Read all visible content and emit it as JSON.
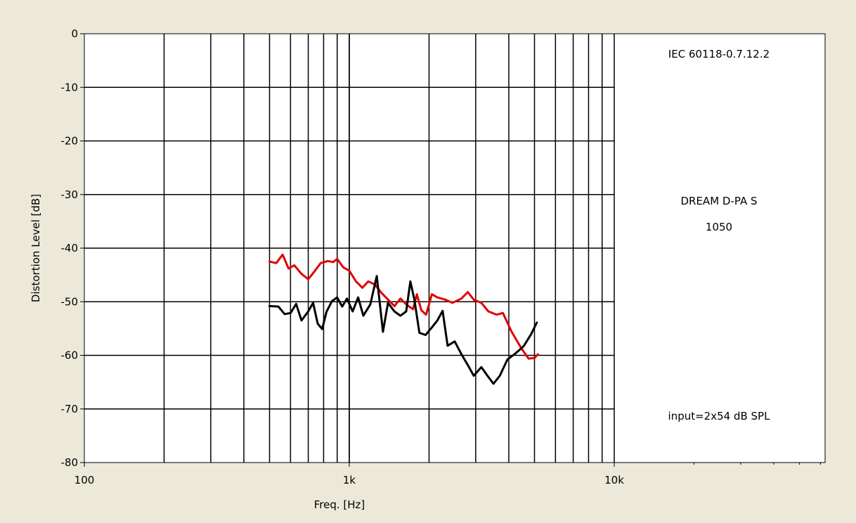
{
  "chart_data": {
    "type": "line",
    "xlabel": "Freq. [Hz]",
    "ylabel": "Distortion Level [dB]",
    "x_scale": "log",
    "xlim": [
      100,
      60000
    ],
    "ylim": [
      -80,
      0
    ],
    "y_ticks": [
      0,
      -10,
      -20,
      -30,
      -40,
      -50,
      -60,
      -70,
      -80
    ],
    "x_ticks": [
      {
        "value": 100,
        "label": "100"
      },
      {
        "value": 1000,
        "label": "1k"
      },
      {
        "value": 10000,
        "label": "10k"
      }
    ],
    "grid": true,
    "annotations": {
      "standard": "IEC 60118-0.7.12.2",
      "device_line1": "DREAM D-PA S",
      "device_line2": "1050",
      "input": "input=2x54 dB SPL"
    },
    "series": [
      {
        "color": "#e00000",
        "points": [
          [
            500,
            -42.5
          ],
          [
            530,
            -42.8
          ],
          [
            560,
            -41.2
          ],
          [
            590,
            -43.8
          ],
          [
            620,
            -43.2
          ],
          [
            660,
            -44.8
          ],
          [
            700,
            -45.8
          ],
          [
            740,
            -44.3
          ],
          [
            780,
            -42.8
          ],
          [
            830,
            -42.4
          ],
          [
            870,
            -42.6
          ],
          [
            900,
            -42.0
          ],
          [
            950,
            -43.6
          ],
          [
            1000,
            -44.2
          ],
          [
            1060,
            -46.2
          ],
          [
            1120,
            -47.4
          ],
          [
            1180,
            -46.2
          ],
          [
            1250,
            -46.8
          ],
          [
            1320,
            -48.3
          ],
          [
            1400,
            -49.6
          ],
          [
            1480,
            -50.8
          ],
          [
            1560,
            -49.4
          ],
          [
            1650,
            -50.6
          ],
          [
            1740,
            -51.4
          ],
          [
            1800,
            -48.6
          ],
          [
            1870,
            -51.6
          ],
          [
            1950,
            -52.4
          ],
          [
            2050,
            -48.6
          ],
          [
            2150,
            -49.2
          ],
          [
            2300,
            -49.6
          ],
          [
            2450,
            -50.2
          ],
          [
            2650,
            -49.4
          ],
          [
            2800,
            -48.2
          ],
          [
            2950,
            -49.6
          ],
          [
            3150,
            -50.2
          ],
          [
            3350,
            -51.8
          ],
          [
            3600,
            -52.4
          ],
          [
            3800,
            -52.1
          ],
          [
            4100,
            -55.6
          ],
          [
            4450,
            -58.6
          ],
          [
            4750,
            -60.6
          ],
          [
            5000,
            -60.5
          ],
          [
            5150,
            -59.8
          ]
        ]
      },
      {
        "color": "#000000",
        "points": [
          [
            500,
            -50.8
          ],
          [
            540,
            -50.9
          ],
          [
            570,
            -52.3
          ],
          [
            600,
            -52.1
          ],
          [
            630,
            -50.4
          ],
          [
            660,
            -53.5
          ],
          [
            700,
            -51.8
          ],
          [
            730,
            -50.2
          ],
          [
            760,
            -54.1
          ],
          [
            790,
            -55.1
          ],
          [
            820,
            -51.9
          ],
          [
            860,
            -49.9
          ],
          [
            900,
            -49.2
          ],
          [
            940,
            -50.9
          ],
          [
            980,
            -49.4
          ],
          [
            1030,
            -51.8
          ],
          [
            1080,
            -49.2
          ],
          [
            1130,
            -52.6
          ],
          [
            1200,
            -50.5
          ],
          [
            1270,
            -45.2
          ],
          [
            1340,
            -55.6
          ],
          [
            1400,
            -50.2
          ],
          [
            1480,
            -51.8
          ],
          [
            1560,
            -52.6
          ],
          [
            1640,
            -51.8
          ],
          [
            1700,
            -46.2
          ],
          [
            1760,
            -49.6
          ],
          [
            1840,
            -55.8
          ],
          [
            1940,
            -56.2
          ],
          [
            2050,
            -54.8
          ],
          [
            2150,
            -53.5
          ],
          [
            2250,
            -51.7
          ],
          [
            2350,
            -58.2
          ],
          [
            2500,
            -57.4
          ],
          [
            2650,
            -59.8
          ],
          [
            2800,
            -61.8
          ],
          [
            2950,
            -63.8
          ],
          [
            3150,
            -62.2
          ],
          [
            3300,
            -63.6
          ],
          [
            3500,
            -65.3
          ],
          [
            3700,
            -63.8
          ],
          [
            3950,
            -60.8
          ],
          [
            4250,
            -59.6
          ],
          [
            4550,
            -58.3
          ],
          [
            4850,
            -56.1
          ],
          [
            5100,
            -53.9
          ]
        ]
      }
    ]
  }
}
